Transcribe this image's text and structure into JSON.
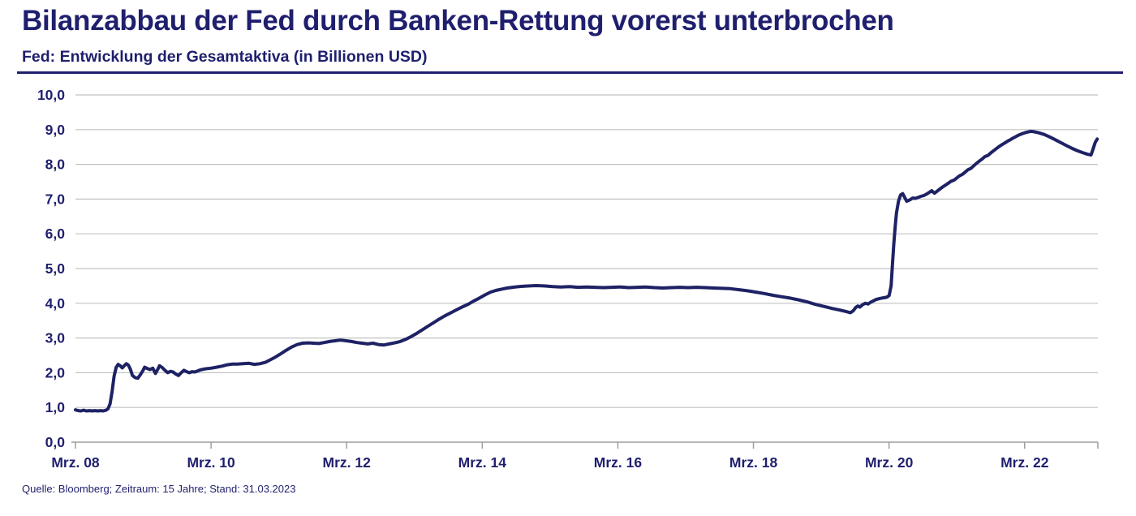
{
  "header": {
    "title": "Bilanzabbau der Fed durch Banken-Rettung vorerst unterbrochen",
    "subtitle": "Fed: Entwicklung der Gesamtaktiva (in Billionen USD)"
  },
  "footer": {
    "source": "Quelle: Bloomberg; Zeitraum: 15 Jahre; Stand: 31.03.2023"
  },
  "colors": {
    "navy": "#1F1F6E",
    "line": "#1E2265",
    "grid": "#C2C2C2",
    "axis": "#9E9E9E",
    "background": "#FFFFFF"
  },
  "chart_data": {
    "type": "line",
    "title": "Fed: Entwicklung der Gesamtaktiva (in Billionen USD)",
    "xlabel": "",
    "ylabel": "",
    "unit": "Billionen USD",
    "grid": true,
    "legend": "none",
    "xlim": [
      2008.17,
      2023.25
    ],
    "ylim": [
      0,
      10
    ],
    "x_ticks": [
      {
        "value": 2008.17,
        "label": "Mrz. 08"
      },
      {
        "value": 2010.17,
        "label": "Mrz. 10"
      },
      {
        "value": 2012.17,
        "label": "Mrz. 12"
      },
      {
        "value": 2014.17,
        "label": "Mrz. 14"
      },
      {
        "value": 2016.17,
        "label": "Mrz. 16"
      },
      {
        "value": 2018.17,
        "label": "Mrz. 18"
      },
      {
        "value": 2020.17,
        "label": "Mrz. 20"
      },
      {
        "value": 2022.17,
        "label": "Mrz. 22"
      }
    ],
    "y_ticks": [
      {
        "value": 0,
        "label": "0,0"
      },
      {
        "value": 1,
        "label": "1,0"
      },
      {
        "value": 2,
        "label": "2,0"
      },
      {
        "value": 3,
        "label": "3,0"
      },
      {
        "value": 4,
        "label": "4,0"
      },
      {
        "value": 5,
        "label": "5,0"
      },
      {
        "value": 6,
        "label": "6,0"
      },
      {
        "value": 7,
        "label": "7,0"
      },
      {
        "value": 8,
        "label": "8,0"
      },
      {
        "value": 9,
        "label": "9,0"
      },
      {
        "value": 10,
        "label": "10,0"
      }
    ],
    "series": [
      {
        "name": "Fed Gesamtaktiva (in Billionen USD)",
        "points": [
          [
            2008.17,
            0.93
          ],
          [
            2008.21,
            0.91
          ],
          [
            2008.25,
            0.9
          ],
          [
            2008.29,
            0.92
          ],
          [
            2008.33,
            0.9
          ],
          [
            2008.38,
            0.91
          ],
          [
            2008.42,
            0.9
          ],
          [
            2008.46,
            0.91
          ],
          [
            2008.5,
            0.9
          ],
          [
            2008.54,
            0.91
          ],
          [
            2008.58,
            0.9
          ],
          [
            2008.62,
            0.92
          ],
          [
            2008.65,
            0.96
          ],
          [
            2008.68,
            1.1
          ],
          [
            2008.71,
            1.45
          ],
          [
            2008.74,
            1.9
          ],
          [
            2008.77,
            2.15
          ],
          [
            2008.8,
            2.24
          ],
          [
            2008.83,
            2.2
          ],
          [
            2008.86,
            2.14
          ],
          [
            2008.89,
            2.2
          ],
          [
            2008.92,
            2.26
          ],
          [
            2008.95,
            2.22
          ],
          [
            2008.98,
            2.1
          ],
          [
            2009.01,
            1.92
          ],
          [
            2009.05,
            1.86
          ],
          [
            2009.09,
            1.84
          ],
          [
            2009.13,
            1.95
          ],
          [
            2009.17,
            2.08
          ],
          [
            2009.19,
            2.16
          ],
          [
            2009.23,
            2.12
          ],
          [
            2009.27,
            2.09
          ],
          [
            2009.31,
            2.13
          ],
          [
            2009.35,
            1.98
          ],
          [
            2009.39,
            2.12
          ],
          [
            2009.41,
            2.2
          ],
          [
            2009.45,
            2.15
          ],
          [
            2009.49,
            2.07
          ],
          [
            2009.53,
            2.0
          ],
          [
            2009.57,
            2.04
          ],
          [
            2009.61,
            2.02
          ],
          [
            2009.65,
            1.96
          ],
          [
            2009.69,
            1.92
          ],
          [
            2009.73,
            2.0
          ],
          [
            2009.77,
            2.07
          ],
          [
            2009.81,
            2.03
          ],
          [
            2009.85,
            2.0
          ],
          [
            2009.89,
            2.03
          ],
          [
            2009.93,
            2.02
          ],
          [
            2009.97,
            2.05
          ],
          [
            2010.01,
            2.08
          ],
          [
            2010.08,
            2.11
          ],
          [
            2010.17,
            2.13
          ],
          [
            2010.25,
            2.16
          ],
          [
            2010.33,
            2.19
          ],
          [
            2010.41,
            2.23
          ],
          [
            2010.49,
            2.25
          ],
          [
            2010.56,
            2.25
          ],
          [
            2010.64,
            2.26
          ],
          [
            2010.73,
            2.27
          ],
          [
            2010.81,
            2.24
          ],
          [
            2010.89,
            2.26
          ],
          [
            2010.97,
            2.3
          ],
          [
            2011.04,
            2.37
          ],
          [
            2011.12,
            2.45
          ],
          [
            2011.2,
            2.55
          ],
          [
            2011.28,
            2.65
          ],
          [
            2011.36,
            2.74
          ],
          [
            2011.44,
            2.81
          ],
          [
            2011.52,
            2.85
          ],
          [
            2011.6,
            2.86
          ],
          [
            2011.68,
            2.85
          ],
          [
            2011.76,
            2.84
          ],
          [
            2011.84,
            2.87
          ],
          [
            2011.92,
            2.9
          ],
          [
            2012.0,
            2.92
          ],
          [
            2012.08,
            2.94
          ],
          [
            2012.16,
            2.92
          ],
          [
            2012.24,
            2.9
          ],
          [
            2012.32,
            2.87
          ],
          [
            2012.4,
            2.85
          ],
          [
            2012.48,
            2.83
          ],
          [
            2012.56,
            2.85
          ],
          [
            2012.64,
            2.81
          ],
          [
            2012.72,
            2.8
          ],
          [
            2012.8,
            2.83
          ],
          [
            2012.88,
            2.86
          ],
          [
            2012.96,
            2.9
          ],
          [
            2013.04,
            2.96
          ],
          [
            2013.12,
            3.04
          ],
          [
            2013.21,
            3.14
          ],
          [
            2013.29,
            3.24
          ],
          [
            2013.37,
            3.34
          ],
          [
            2013.46,
            3.45
          ],
          [
            2013.54,
            3.55
          ],
          [
            2013.62,
            3.64
          ],
          [
            2013.71,
            3.73
          ],
          [
            2013.79,
            3.81
          ],
          [
            2013.87,
            3.89
          ],
          [
            2013.96,
            3.97
          ],
          [
            2014.04,
            4.06
          ],
          [
            2014.12,
            4.14
          ],
          [
            2014.21,
            4.24
          ],
          [
            2014.29,
            4.32
          ],
          [
            2014.37,
            4.37
          ],
          [
            2014.46,
            4.41
          ],
          [
            2014.54,
            4.44
          ],
          [
            2014.62,
            4.46
          ],
          [
            2014.71,
            4.48
          ],
          [
            2014.79,
            4.49
          ],
          [
            2014.87,
            4.5
          ],
          [
            2014.96,
            4.51
          ],
          [
            2015.08,
            4.5
          ],
          [
            2015.21,
            4.48
          ],
          [
            2015.33,
            4.47
          ],
          [
            2015.46,
            4.48
          ],
          [
            2015.58,
            4.46
          ],
          [
            2015.71,
            4.47
          ],
          [
            2015.83,
            4.46
          ],
          [
            2015.96,
            4.45
          ],
          [
            2016.08,
            4.46
          ],
          [
            2016.21,
            4.47
          ],
          [
            2016.33,
            4.45
          ],
          [
            2016.46,
            4.46
          ],
          [
            2016.58,
            4.47
          ],
          [
            2016.71,
            4.45
          ],
          [
            2016.83,
            4.44
          ],
          [
            2016.96,
            4.45
          ],
          [
            2017.08,
            4.46
          ],
          [
            2017.21,
            4.45
          ],
          [
            2017.33,
            4.46
          ],
          [
            2017.46,
            4.45
          ],
          [
            2017.58,
            4.44
          ],
          [
            2017.71,
            4.43
          ],
          [
            2017.83,
            4.42
          ],
          [
            2017.96,
            4.39
          ],
          [
            2018.08,
            4.36
          ],
          [
            2018.21,
            4.32
          ],
          [
            2018.33,
            4.28
          ],
          [
            2018.46,
            4.23
          ],
          [
            2018.58,
            4.19
          ],
          [
            2018.71,
            4.15
          ],
          [
            2018.83,
            4.1
          ],
          [
            2018.96,
            4.04
          ],
          [
            2019.08,
            3.97
          ],
          [
            2019.21,
            3.91
          ],
          [
            2019.33,
            3.85
          ],
          [
            2019.46,
            3.8
          ],
          [
            2019.54,
            3.76
          ],
          [
            2019.6,
            3.73
          ],
          [
            2019.64,
            3.78
          ],
          [
            2019.68,
            3.88
          ],
          [
            2019.71,
            3.92
          ],
          [
            2019.74,
            3.89
          ],
          [
            2019.78,
            3.96
          ],
          [
            2019.82,
            4.0
          ],
          [
            2019.86,
            3.98
          ],
          [
            2019.9,
            4.03
          ],
          [
            2019.94,
            4.07
          ],
          [
            2019.98,
            4.11
          ],
          [
            2020.04,
            4.14
          ],
          [
            2020.09,
            4.16
          ],
          [
            2020.13,
            4.17
          ],
          [
            2020.17,
            4.22
          ],
          [
            2020.2,
            4.5
          ],
          [
            2020.22,
            5.1
          ],
          [
            2020.24,
            5.7
          ],
          [
            2020.26,
            6.2
          ],
          [
            2020.28,
            6.6
          ],
          [
            2020.31,
            6.95
          ],
          [
            2020.34,
            7.12
          ],
          [
            2020.37,
            7.16
          ],
          [
            2020.4,
            7.05
          ],
          [
            2020.43,
            6.94
          ],
          [
            2020.47,
            6.97
          ],
          [
            2020.52,
            7.03
          ],
          [
            2020.56,
            7.02
          ],
          [
            2020.6,
            7.05
          ],
          [
            2020.64,
            7.08
          ],
          [
            2020.68,
            7.1
          ],
          [
            2020.72,
            7.14
          ],
          [
            2020.76,
            7.19
          ],
          [
            2020.8,
            7.24
          ],
          [
            2020.84,
            7.17
          ],
          [
            2020.88,
            7.23
          ],
          [
            2020.92,
            7.29
          ],
          [
            2020.96,
            7.35
          ],
          [
            2021.0,
            7.4
          ],
          [
            2021.04,
            7.45
          ],
          [
            2021.08,
            7.51
          ],
          [
            2021.13,
            7.55
          ],
          [
            2021.17,
            7.61
          ],
          [
            2021.21,
            7.67
          ],
          [
            2021.25,
            7.71
          ],
          [
            2021.29,
            7.77
          ],
          [
            2021.33,
            7.84
          ],
          [
            2021.38,
            7.89
          ],
          [
            2021.42,
            7.96
          ],
          [
            2021.46,
            8.03
          ],
          [
            2021.5,
            8.09
          ],
          [
            2021.54,
            8.15
          ],
          [
            2021.58,
            8.22
          ],
          [
            2021.63,
            8.26
          ],
          [
            2021.67,
            8.33
          ],
          [
            2021.71,
            8.39
          ],
          [
            2021.75,
            8.45
          ],
          [
            2021.79,
            8.51
          ],
          [
            2021.83,
            8.56
          ],
          [
            2021.88,
            8.62
          ],
          [
            2021.92,
            8.67
          ],
          [
            2021.96,
            8.71
          ],
          [
            2022.0,
            8.76
          ],
          [
            2022.04,
            8.8
          ],
          [
            2022.08,
            8.84
          ],
          [
            2022.13,
            8.88
          ],
          [
            2022.17,
            8.91
          ],
          [
            2022.21,
            8.93
          ],
          [
            2022.26,
            8.95
          ],
          [
            2022.31,
            8.94
          ],
          [
            2022.38,
            8.91
          ],
          [
            2022.46,
            8.86
          ],
          [
            2022.54,
            8.79
          ],
          [
            2022.62,
            8.71
          ],
          [
            2022.7,
            8.63
          ],
          [
            2022.78,
            8.55
          ],
          [
            2022.86,
            8.47
          ],
          [
            2022.94,
            8.4
          ],
          [
            2023.02,
            8.34
          ],
          [
            2023.1,
            8.29
          ],
          [
            2023.15,
            8.27
          ],
          [
            2023.18,
            8.45
          ],
          [
            2023.21,
            8.63
          ],
          [
            2023.24,
            8.73
          ]
        ]
      }
    ]
  }
}
